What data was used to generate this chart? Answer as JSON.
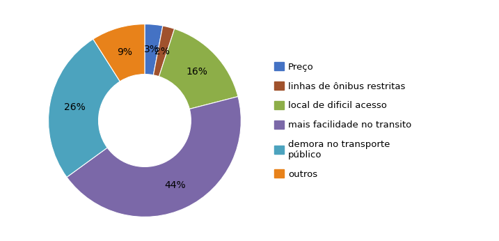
{
  "labels": [
    "Preço",
    "linhas de ônibus restritas",
    "local de dificil acesso",
    "mais facilidade no transito",
    "demora no transporte\npúblico",
    "outros"
  ],
  "values": [
    3,
    2,
    16,
    44,
    26,
    9
  ],
  "colors": [
    "#4472C4",
    "#A0522D",
    "#8DAE48",
    "#7B68A8",
    "#4CA3BE",
    "#E8821A"
  ],
  "pct_labels": [
    "3%",
    "2%",
    "16%",
    "44%",
    "26%",
    "9%"
  ],
  "legend_labels": [
    "Preço",
    "linhas de ônibus restritas",
    "local de dificil acesso",
    "mais facilidade no transito",
    "demora no transporte\npúblico",
    "outros"
  ],
  "background_color": "#ffffff",
  "text_fontsize": 10,
  "legend_fontsize": 9.5
}
